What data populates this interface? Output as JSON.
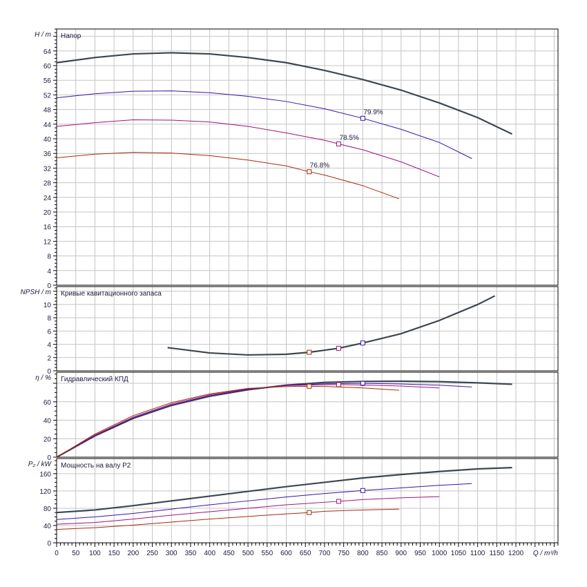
{
  "chart_data": [
    {
      "type": "line",
      "title": "Напор",
      "ylabel": "H / m",
      "ylim": [
        0,
        70
      ],
      "yticks": [
        0,
        4,
        8,
        12,
        16,
        20,
        24,
        28,
        32,
        36,
        40,
        44,
        48,
        52,
        56,
        60,
        64
      ],
      "series": [
        {
          "color": "#3c4650",
          "x": [
            0,
            100,
            200,
            300,
            400,
            500,
            600,
            700,
            800,
            900,
            1000,
            1100,
            1190
          ],
          "y": [
            60.8,
            62.2,
            63.2,
            63.5,
            63.2,
            62.2,
            60.8,
            58.7,
            56.2,
            53.3,
            49.8,
            45.8,
            41.3
          ]
        },
        {
          "color": "#3a10a8",
          "x": [
            0,
            100,
            200,
            300,
            400,
            500,
            600,
            700,
            800,
            900,
            1000,
            1085
          ],
          "y": [
            51.2,
            52.3,
            53,
            53.1,
            52.6,
            51.6,
            50.2,
            48.2,
            45.6,
            42.6,
            39,
            34.6
          ],
          "marker": {
            "x": 800,
            "y": 45.6,
            "label": "79.9%"
          }
        },
        {
          "color": "#a0107a",
          "x": [
            0,
            100,
            200,
            300,
            400,
            500,
            600,
            700,
            737,
            800,
            900,
            1000
          ],
          "y": [
            43.4,
            44.4,
            45.2,
            45.1,
            44.6,
            43.4,
            41.6,
            39.6,
            38.6,
            37,
            33.7,
            29.6
          ],
          "marker": {
            "x": 737,
            "y": 38.6,
            "label": "78.5%"
          }
        },
        {
          "color": "#a52a0a",
          "x": [
            0,
            100,
            200,
            300,
            400,
            500,
            600,
            660,
            700,
            800,
            895
          ],
          "y": [
            34.8,
            35.8,
            36.3,
            36.1,
            35.4,
            34.2,
            32.6,
            31,
            30.1,
            27.2,
            23.6
          ],
          "marker": {
            "x": 660,
            "y": 31,
            "label": "76.8%"
          }
        }
      ]
    },
    {
      "type": "line",
      "title": "Кривые кавитационного запаса",
      "ylabel": "NPSH / m",
      "ylim": [
        0,
        12.7
      ],
      "yticks": [
        0,
        2,
        4,
        6,
        8,
        10
      ],
      "series": [
        {
          "color": "#3c4650",
          "x": [
            290,
            400,
            500,
            600,
            660,
            737,
            800,
            900,
            1000,
            1100,
            1145
          ],
          "y": [
            3.5,
            2.7,
            2.4,
            2.5,
            2.8,
            3.4,
            4.2,
            5.6,
            7.6,
            10.0,
            11.3
          ],
          "markers": [
            {
              "x": 660,
              "y": 2.8,
              "color": "#a52a0a"
            },
            {
              "x": 737,
              "y": 3.4,
              "color": "#a0107a"
            },
            {
              "x": 800,
              "y": 4.2,
              "color": "#3a10a8"
            }
          ]
        }
      ]
    },
    {
      "type": "line",
      "title": "Гидравлический КПД",
      "ylabel": "η / %",
      "ylim": [
        0,
        92
      ],
      "yticks": [
        0,
        20,
        40,
        60
      ],
      "series": [
        {
          "color": "#3c4650",
          "x": [
            0,
            100,
            200,
            300,
            400,
            500,
            600,
            700,
            800,
            900,
            1000,
            1100,
            1190
          ],
          "y": [
            0,
            23,
            42,
            56,
            66,
            73,
            78,
            81,
            82,
            82.3,
            81.8,
            80.5,
            79
          ]
        },
        {
          "color": "#3a10a8",
          "x": [
            0,
            100,
            200,
            300,
            400,
            500,
            600,
            700,
            800,
            900,
            1000,
            1085
          ],
          "y": [
            0,
            23.5,
            42.5,
            56.5,
            66.5,
            73.5,
            78,
            79.5,
            79.9,
            79.3,
            78,
            76
          ],
          "marker": {
            "x": 800,
            "y": 79.9
          }
        },
        {
          "color": "#a0107a",
          "x": [
            0,
            100,
            200,
            300,
            400,
            500,
            600,
            700,
            737,
            800,
            900,
            1000
          ],
          "y": [
            0,
            24,
            43.5,
            57.5,
            67.5,
            74,
            77.5,
            78.4,
            78.5,
            78.2,
            77,
            75
          ],
          "marker": {
            "x": 737,
            "y": 78.5
          }
        },
        {
          "color": "#a52a0a",
          "x": [
            0,
            100,
            200,
            300,
            400,
            500,
            600,
            660,
            700,
            800,
            895
          ],
          "y": [
            0,
            25,
            45,
            59,
            68.5,
            74.5,
            76.5,
            76.8,
            76.6,
            75,
            72.5
          ],
          "marker": {
            "x": 660,
            "y": 76.8
          }
        }
      ]
    },
    {
      "type": "line",
      "title": "Мощность на валу P2",
      "ylabel": "P₂ / kW",
      "ylim": [
        0,
        195
      ],
      "yticks": [
        0,
        40,
        80,
        120,
        160
      ],
      "xlabel": "Q / m³/h",
      "xlim": [
        0,
        1310
      ],
      "xticks": [
        0,
        50,
        100,
        150,
        200,
        250,
        300,
        350,
        400,
        450,
        500,
        550,
        600,
        650,
        700,
        750,
        800,
        850,
        900,
        950,
        1000,
        1050,
        1100,
        1150,
        1200
      ],
      "series": [
        {
          "color": "#3c4650",
          "x": [
            0,
            100,
            200,
            300,
            400,
            500,
            600,
            700,
            800,
            900,
            1000,
            1100,
            1190
          ],
          "y": [
            70,
            76,
            86,
            97,
            108,
            119,
            130,
            140,
            150,
            158,
            165,
            171,
            174
          ]
        },
        {
          "color": "#3a10a8",
          "x": [
            0,
            100,
            200,
            300,
            400,
            500,
            600,
            700,
            800,
            900,
            1000,
            1085
          ],
          "y": [
            54,
            60,
            68,
            78,
            88,
            97,
            106,
            114,
            121,
            127,
            133,
            137
          ],
          "marker": {
            "x": 800,
            "y": 121
          }
        },
        {
          "color": "#a0107a",
          "x": [
            0,
            100,
            200,
            300,
            400,
            500,
            600,
            737,
            800,
            900,
            1000
          ],
          "y": [
            43,
            47,
            55,
            64,
            72,
            80,
            88,
            96,
            100,
            104,
            107
          ],
          "marker": {
            "x": 737,
            "y": 96
          }
        },
        {
          "color": "#a52a0a",
          "x": [
            0,
            100,
            200,
            300,
            400,
            500,
            600,
            660,
            700,
            800,
            895
          ],
          "y": [
            31,
            35,
            41,
            48,
            55,
            61,
            67,
            70,
            73,
            76,
            78
          ],
          "marker": {
            "x": 660,
            "y": 70
          }
        }
      ]
    }
  ]
}
